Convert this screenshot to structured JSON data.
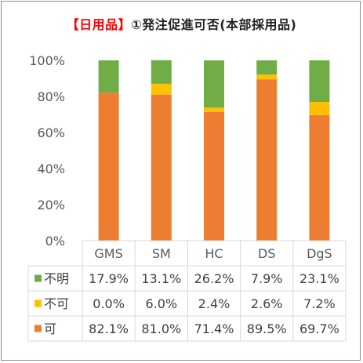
{
  "title": {
    "accent_text": "【日用品】",
    "rest_text": "①発注促進可否(本部採用品)"
  },
  "colors": {
    "不明": "#70ad47",
    "不可": "#ffc000",
    "可": "#ed7d31",
    "axis_text": "#595959",
    "grid": "#d9d9d9",
    "table_text": "#404040"
  },
  "chart_data": {
    "type": "bar",
    "stacked": true,
    "title": "【日用品】①発注促進可否(本部採用品)",
    "categories": [
      "GMS",
      "SM",
      "HC",
      "DS",
      "DgS"
    ],
    "series": [
      {
        "name": "可",
        "values": [
          82.1,
          81.0,
          71.4,
          89.5,
          69.7
        ],
        "labels": [
          "82.1%",
          "81.0%",
          "71.4%",
          "89.5%",
          "69.7%"
        ]
      },
      {
        "name": "不可",
        "values": [
          0.0,
          6.0,
          2.4,
          2.6,
          7.2
        ],
        "labels": [
          "0.0%",
          "6.0%",
          "2.4%",
          "2.6%",
          "7.2%"
        ]
      },
      {
        "name": "不明",
        "values": [
          17.9,
          13.1,
          26.2,
          7.9,
          23.1
        ],
        "labels": [
          "17.9%",
          "13.1%",
          "26.2%",
          "7.9%",
          "23.1%"
        ]
      }
    ],
    "table_row_order": [
      "不明",
      "不可",
      "可"
    ],
    "ylim": [
      0,
      100
    ],
    "yticks": [
      "0%",
      "20%",
      "40%",
      "60%",
      "80%",
      "100%"
    ],
    "ytick_values": [
      0,
      20,
      40,
      60,
      80,
      100
    ],
    "grid": false,
    "legend": "data-table"
  }
}
